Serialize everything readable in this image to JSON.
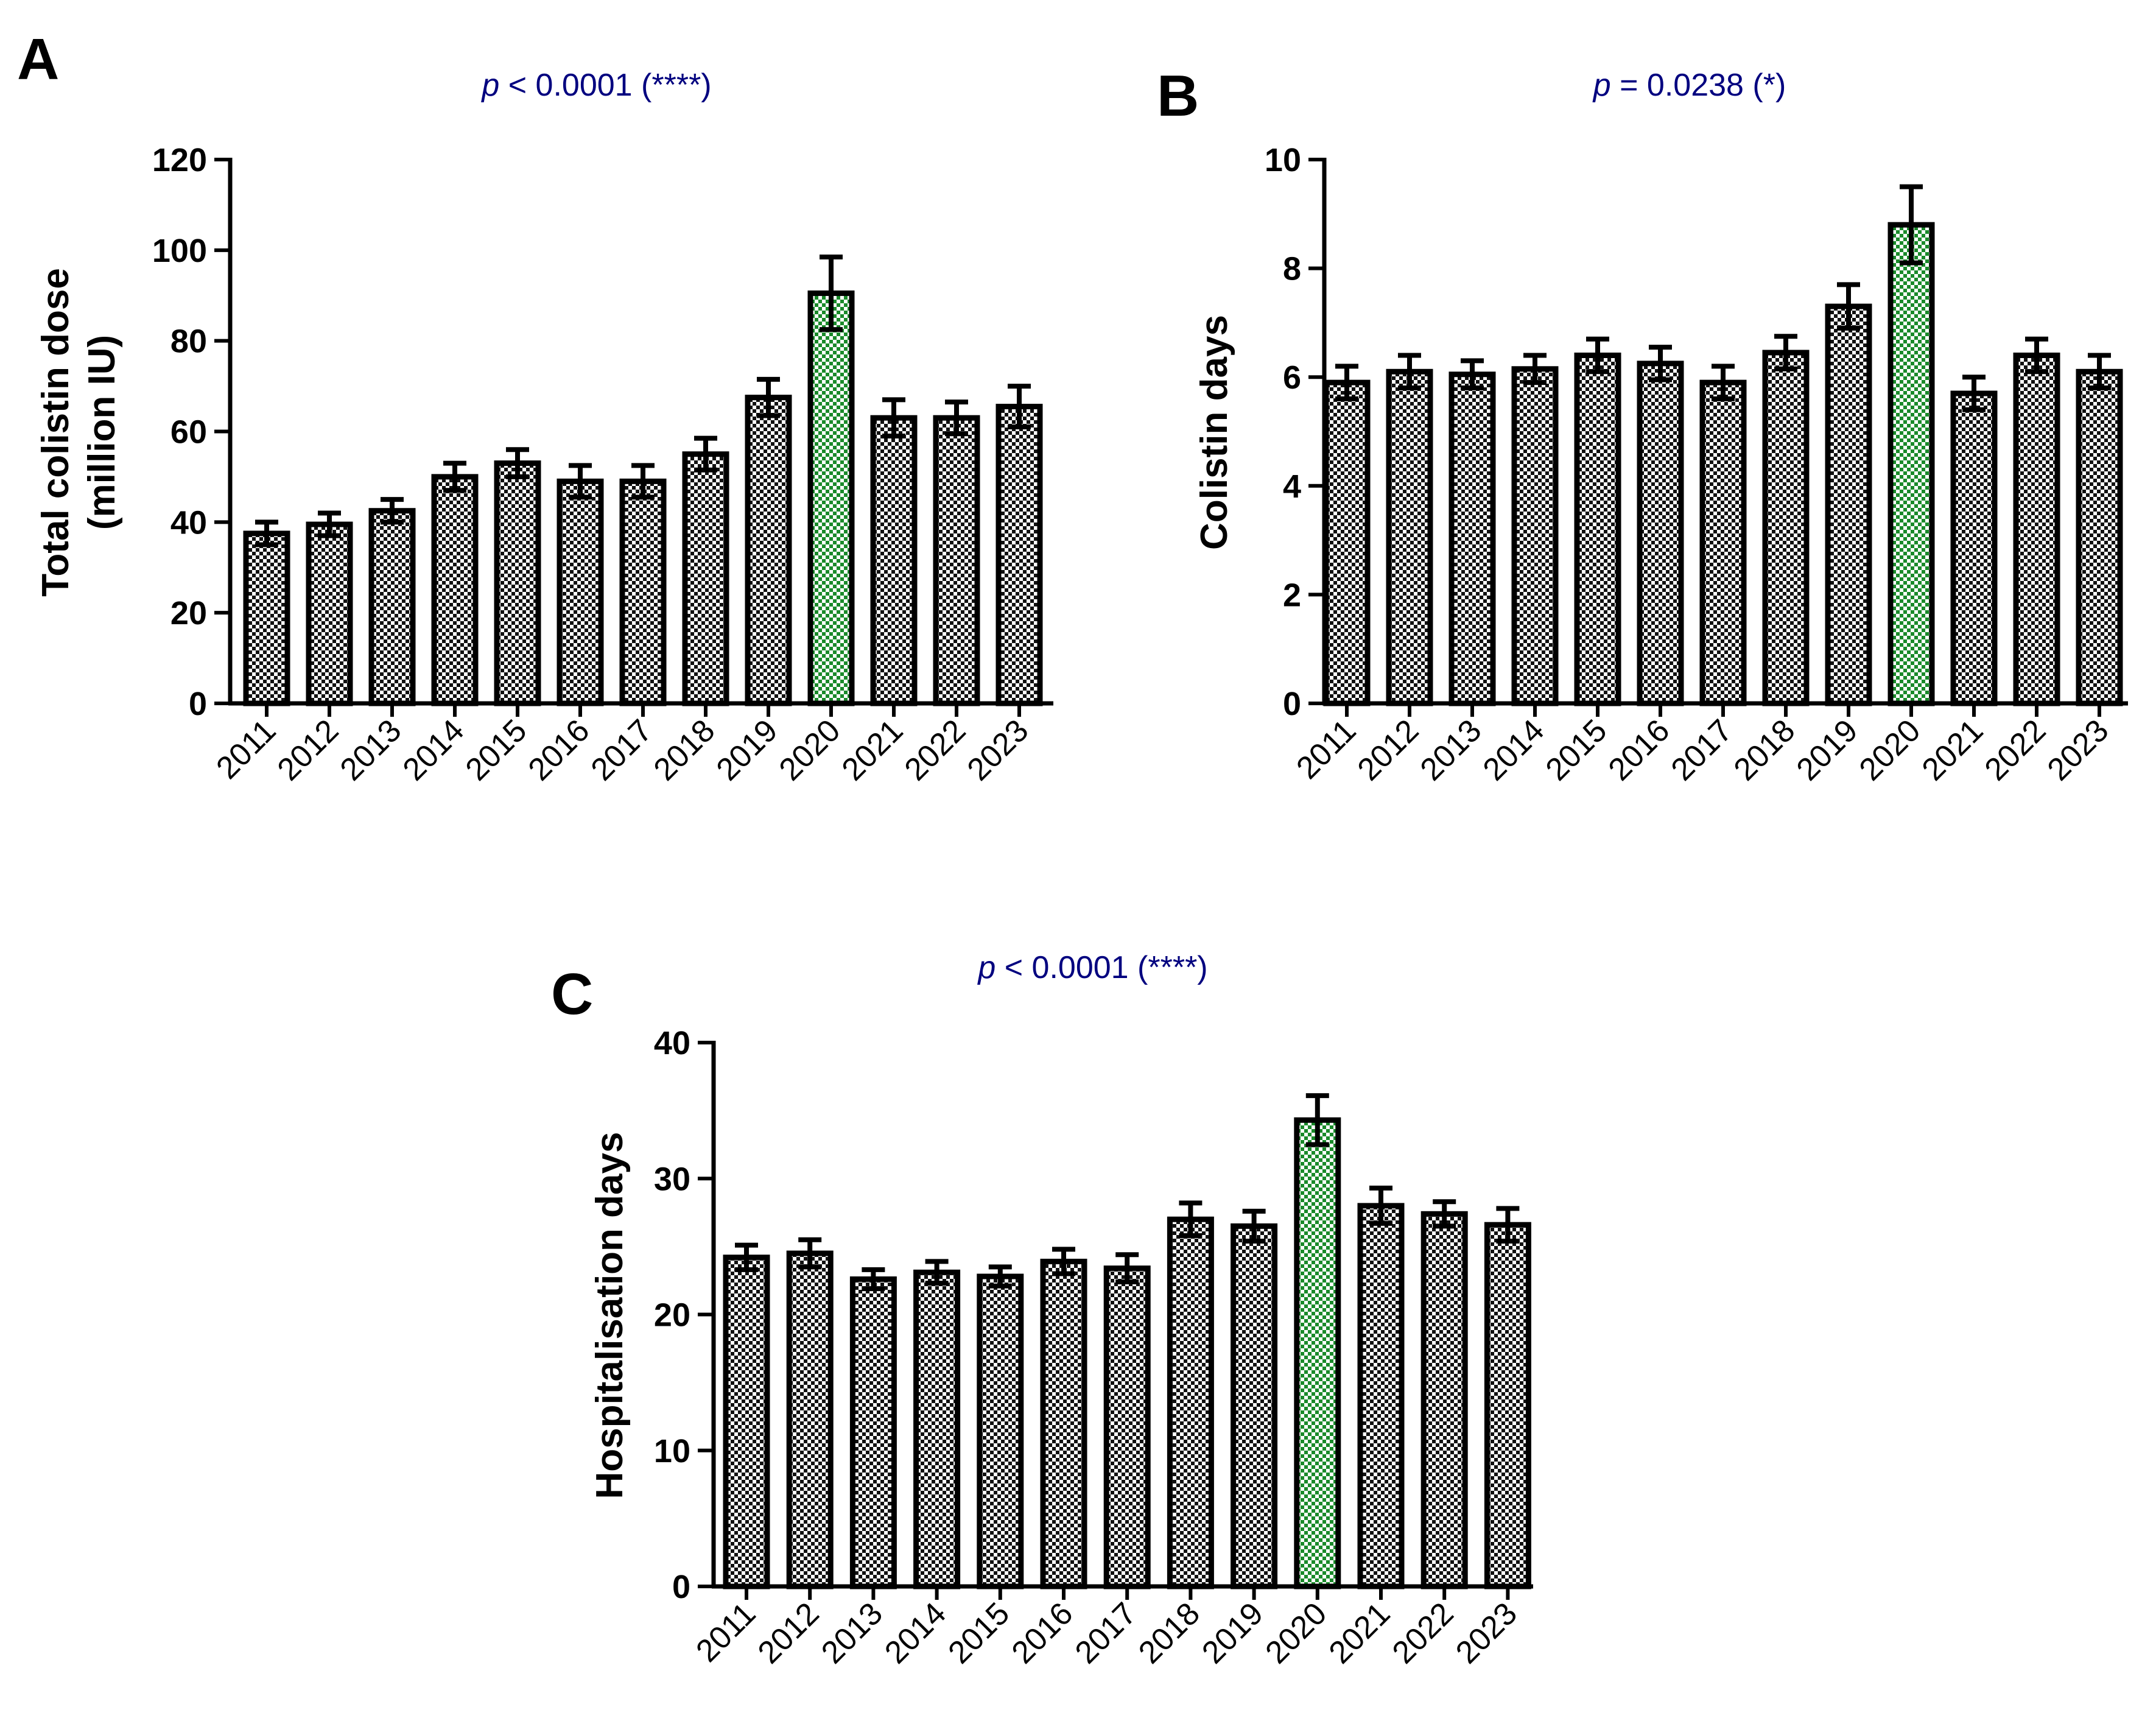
{
  "colors": {
    "bar_pattern_dark": "#111111",
    "bar_pattern_light": "#ffffff",
    "highlight_pattern": "#1a8a2a",
    "p_value_text": "#00007f",
    "axis": "#000000"
  },
  "chart_data": [
    {
      "panel": "A",
      "type": "bar",
      "title_prefix": "p",
      "title_rest": " < 0.0001 (****)",
      "ylabel_line1": "Total colistin dose",
      "ylabel_line2": "(million IU)",
      "xlabel": "",
      "ylim": [
        0,
        120
      ],
      "yticks": [
        0,
        20,
        40,
        60,
        80,
        100,
        120
      ],
      "categories": [
        "2011",
        "2012",
        "2013",
        "2014",
        "2015",
        "2016",
        "2017",
        "2018",
        "2019",
        "2020",
        "2021",
        "2022",
        "2023"
      ],
      "values": [
        37.5,
        39.5,
        42.5,
        50,
        53,
        49,
        49,
        55,
        67.5,
        90.5,
        63,
        63,
        65.5
      ],
      "errors": [
        2.5,
        2.5,
        2.5,
        3,
        3,
        3.5,
        3.5,
        3.5,
        4,
        8,
        4,
        3.5,
        4.5
      ],
      "highlight_category": "2020"
    },
    {
      "panel": "B",
      "type": "bar",
      "title_prefix": "p",
      "title_rest": " = 0.0238 (*)",
      "ylabel_line1": "Colistin days",
      "ylabel_line2": "",
      "xlabel": "",
      "ylim": [
        0,
        10
      ],
      "yticks": [
        0,
        2,
        4,
        6,
        8,
        10
      ],
      "categories": [
        "2011",
        "2012",
        "2013",
        "2014",
        "2015",
        "2016",
        "2017",
        "2018",
        "2019",
        "2020",
        "2021",
        "2022",
        "2023"
      ],
      "values": [
        5.9,
        6.1,
        6.05,
        6.15,
        6.4,
        6.25,
        5.9,
        6.45,
        7.3,
        8.8,
        5.7,
        6.4,
        6.1
      ],
      "errors": [
        0.3,
        0.3,
        0.25,
        0.25,
        0.3,
        0.3,
        0.3,
        0.3,
        0.4,
        0.7,
        0.3,
        0.3,
        0.3
      ],
      "highlight_category": "2020"
    },
    {
      "panel": "C",
      "type": "bar",
      "title_prefix": "p",
      "title_rest": " < 0.0001 (****)",
      "ylabel_line1": "Hospitalisation days",
      "ylabel_line2": "",
      "xlabel": "",
      "ylim": [
        0,
        40
      ],
      "yticks": [
        0,
        10,
        20,
        30,
        40
      ],
      "categories": [
        "2011",
        "2012",
        "2013",
        "2014",
        "2015",
        "2016",
        "2017",
        "2018",
        "2019",
        "2020",
        "2021",
        "2022",
        "2023"
      ],
      "values": [
        24.2,
        24.5,
        22.6,
        23.1,
        22.8,
        23.9,
        23.4,
        27,
        26.5,
        34.3,
        28,
        27.4,
        26.6
      ],
      "errors": [
        0.9,
        1.0,
        0.7,
        0.8,
        0.7,
        0.9,
        1.0,
        1.2,
        1.1,
        1.8,
        1.3,
        0.9,
        1.2
      ],
      "highlight_category": "2020"
    }
  ]
}
